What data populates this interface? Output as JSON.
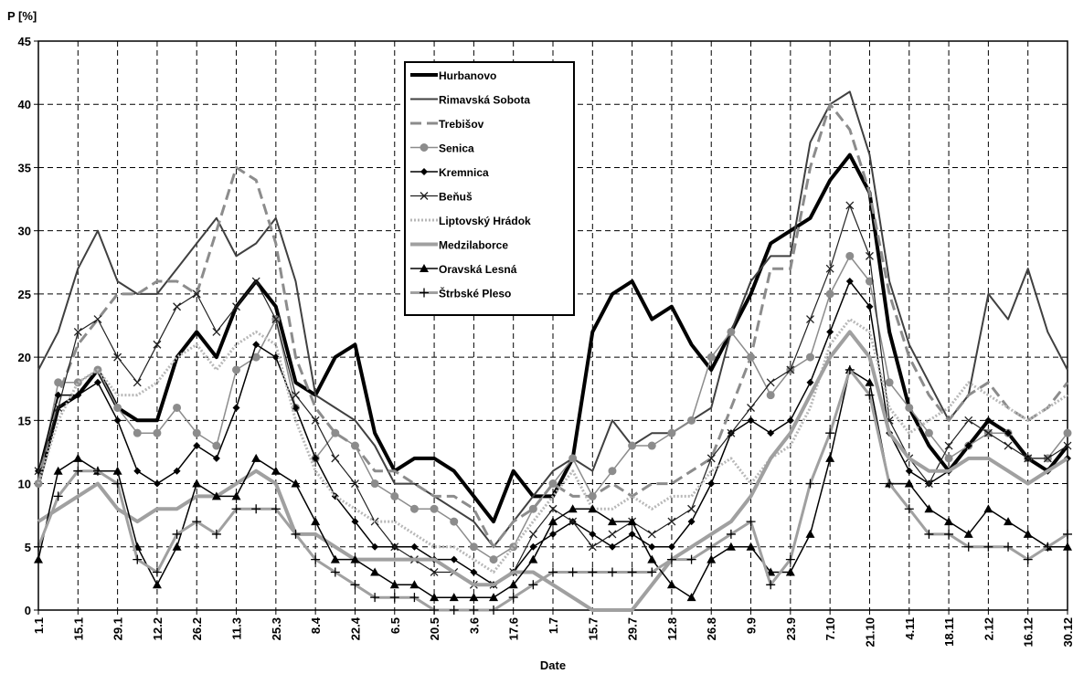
{
  "chart_data": {
    "type": "line",
    "y_label": "P [%]",
    "x_label": "Date",
    "categories": [
      "1.1",
      null,
      "15.1",
      null,
      "29.1",
      null,
      "12.2",
      null,
      "26.2",
      null,
      "11.3",
      null,
      "25.3",
      null,
      "8.4",
      null,
      "22.4",
      null,
      "6.5",
      null,
      "20.5",
      null,
      "3.6",
      null,
      "17.6",
      null,
      "1.7",
      null,
      "15.7",
      null,
      "29.7",
      null,
      "12.8",
      null,
      "26.8",
      null,
      "9.9",
      null,
      "23.9",
      null,
      "7.10",
      null,
      "21.10",
      null,
      "4.11",
      null,
      "18.11",
      null,
      "2.12",
      null,
      "16.12",
      null,
      "30.12"
    ],
    "ylim": [
      0,
      45
    ],
    "yticks": [
      0,
      5,
      10,
      15,
      20,
      25,
      30,
      35,
      40,
      45
    ],
    "grid": true,
    "grid_style": "dashed",
    "legend": "top-center",
    "series": [
      {
        "name": "Hurbanovo",
        "color": "#000000",
        "width": 4,
        "dash": "none",
        "marker": "none",
        "values": [
          10,
          16,
          17,
          19,
          16,
          15,
          15,
          20,
          22,
          20,
          24,
          26,
          24,
          18,
          17,
          20,
          21,
          14,
          11,
          12,
          12,
          11,
          9,
          7,
          11,
          9,
          9,
          12,
          22,
          25,
          26,
          23,
          24,
          21,
          19,
          22,
          25,
          29,
          30,
          31,
          34,
          36,
          33,
          22,
          16,
          13,
          11,
          13,
          15,
          14,
          12,
          11,
          13
        ]
      },
      {
        "name": "Rimavská Sobota",
        "color": "#404040",
        "width": 2,
        "dash": "none",
        "marker": "none",
        "values": [
          19,
          22,
          27,
          30,
          26,
          25,
          25,
          27,
          29,
          31,
          28,
          29,
          31,
          26,
          17,
          16,
          15,
          13,
          10,
          10,
          9,
          8,
          7,
          5,
          7,
          9,
          11,
          12,
          11,
          15,
          13,
          14,
          14,
          15,
          16,
          22,
          26,
          28,
          28,
          37,
          40,
          41,
          36,
          26,
          21,
          18,
          15,
          17,
          25,
          23,
          27,
          22,
          19
        ]
      },
      {
        "name": "Trebišov",
        "color": "#8c8c8c",
        "width": 3,
        "dash": "12 6",
        "marker": "none",
        "values": [
          10,
          17,
          21,
          23,
          25,
          25,
          26,
          26,
          25,
          30,
          35,
          34,
          29,
          20,
          16,
          14,
          13,
          11,
          11,
          10,
          9,
          9,
          8,
          5,
          7,
          8,
          10,
          9,
          9,
          10,
          9,
          10,
          10,
          11,
          12,
          16,
          20,
          27,
          27,
          35,
          40,
          38,
          33,
          25,
          20,
          17,
          15,
          17,
          18,
          16,
          15,
          16,
          18
        ]
      },
      {
        "name": "Senica",
        "color": "#8c8c8c",
        "width": 1.5,
        "dash": "none",
        "marker": "circle",
        "values": [
          10,
          18,
          18,
          19,
          16,
          14,
          14,
          16,
          14,
          13,
          19,
          20,
          23,
          16,
          12,
          14,
          13,
          10,
          9,
          8,
          8,
          7,
          5,
          4,
          5,
          8,
          10,
          12,
          9,
          11,
          13,
          13,
          14,
          15,
          20,
          22,
          20,
          17,
          19,
          20,
          25,
          28,
          26,
          18,
          16,
          14,
          12,
          13,
          14,
          14,
          12,
          12,
          14
        ]
      },
      {
        "name": "Kremnica",
        "color": "#000000",
        "width": 1.5,
        "dash": "none",
        "marker": "diamond",
        "values": [
          11,
          17,
          17,
          18,
          15,
          11,
          10,
          11,
          13,
          12,
          16,
          21,
          20,
          16,
          12,
          9,
          7,
          5,
          5,
          5,
          4,
          4,
          3,
          2,
          3,
          5,
          6,
          7,
          6,
          5,
          6,
          5,
          5,
          7,
          10,
          14,
          15,
          14,
          15,
          18,
          22,
          26,
          24,
          14,
          11,
          10,
          11,
          13,
          15,
          14,
          12,
          11,
          12
        ]
      },
      {
        "name": "Beňuš",
        "color": "#202020",
        "width": 1.2,
        "dash": "none",
        "marker": "x",
        "values": [
          11,
          16,
          22,
          23,
          20,
          18,
          21,
          24,
          25,
          22,
          24,
          26,
          23,
          17,
          15,
          12,
          10,
          7,
          5,
          4,
          3,
          3,
          2,
          2,
          3,
          6,
          8,
          7,
          5,
          6,
          7,
          6,
          7,
          8,
          12,
          14,
          16,
          18,
          19,
          23,
          27,
          32,
          28,
          15,
          12,
          10,
          13,
          15,
          14,
          13,
          12,
          12,
          13
        ]
      },
      {
        "name": "Liptovský Hrádok",
        "color": "#b8b8b8",
        "width": 3,
        "dash": "2 2",
        "marker": "none",
        "values": [
          10,
          15,
          18,
          19,
          17,
          17,
          18,
          20,
          21,
          19,
          21,
          22,
          21,
          15,
          11,
          9,
          8,
          7,
          7,
          6,
          5,
          5,
          4,
          3,
          5,
          7,
          9,
          11,
          8,
          8,
          9,
          8,
          9,
          9,
          11,
          12,
          10,
          12,
          13,
          16,
          21,
          23,
          22,
          16,
          14,
          15,
          16,
          18,
          17,
          16,
          15,
          16,
          17
        ]
      },
      {
        "name": "Medzilaborce",
        "color": "#a0a0a0",
        "width": 4,
        "dash": "none",
        "marker": "none",
        "values": [
          7,
          8,
          9,
          10,
          8,
          7,
          8,
          8,
          9,
          9,
          10,
          11,
          10,
          6,
          6,
          5,
          4,
          4,
          4,
          4,
          4,
          3,
          2,
          2,
          3,
          3,
          2,
          1,
          0,
          0,
          0,
          2,
          4,
          5,
          6,
          7,
          9,
          12,
          14,
          17,
          20,
          22,
          20,
          14,
          12,
          11,
          11,
          12,
          12,
          11,
          10,
          11,
          12
        ]
      },
      {
        "name": "Oravská Lesná",
        "color": "#000000",
        "width": 1.5,
        "dash": "none",
        "marker": "triangle",
        "values": [
          4,
          11,
          12,
          11,
          11,
          5,
          2,
          5,
          10,
          9,
          9,
          12,
          11,
          10,
          7,
          4,
          4,
          3,
          2,
          2,
          1,
          1,
          1,
          1,
          2,
          4,
          7,
          8,
          8,
          7,
          7,
          4,
          2,
          1,
          4,
          5,
          5,
          3,
          3,
          6,
          12,
          19,
          18,
          10,
          10,
          8,
          7,
          6,
          8,
          7,
          6,
          5,
          5
        ]
      },
      {
        "name": "Štrbské Pleso",
        "color": "#a0a0a0",
        "width": 3,
        "dash": "none",
        "marker": "plus",
        "values": [
          5,
          9,
          11,
          11,
          10,
          4,
          3,
          6,
          7,
          6,
          8,
          8,
          8,
          6,
          4,
          3,
          2,
          1,
          1,
          1,
          0,
          0,
          0,
          0,
          1,
          2,
          3,
          3,
          3,
          3,
          3,
          3,
          4,
          4,
          5,
          6,
          7,
          2,
          4,
          10,
          14,
          19,
          17,
          10,
          8,
          6,
          6,
          5,
          5,
          5,
          4,
          5,
          6
        ]
      }
    ]
  }
}
